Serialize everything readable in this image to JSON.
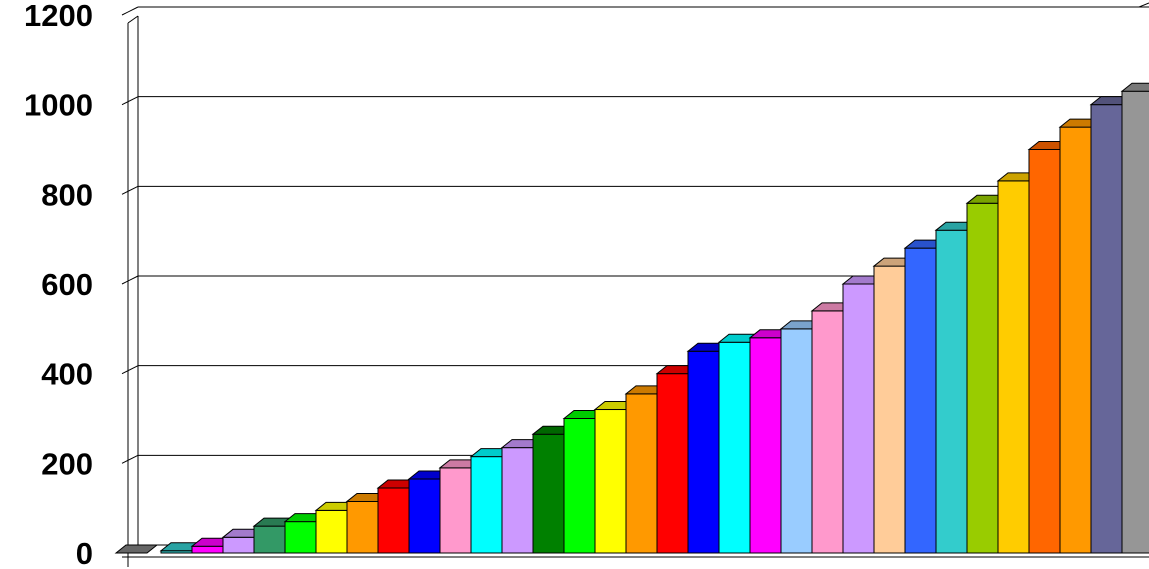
{
  "chart_data": {
    "type": "bar",
    "title": "",
    "xlabel": "",
    "ylabel": "",
    "ylim": [
      0,
      1200
    ],
    "yticks": [
      "0",
      "200",
      "400",
      "600",
      "800",
      "1000",
      "1200"
    ],
    "grid": true,
    "legend": "none",
    "style": "3d-columns",
    "values": [
      0,
      5,
      15,
      35,
      60,
      70,
      95,
      115,
      145,
      165,
      190,
      215,
      235,
      265,
      300,
      320,
      355,
      400,
      450,
      470,
      480,
      500,
      540,
      600,
      640,
      680,
      720,
      780,
      830,
      900,
      950,
      1000,
      1030
    ],
    "colors": [
      "#808080",
      "#33cccc",
      "#ff00ff",
      "#cc99ff",
      "#339966",
      "#00ff00",
      "#ffff00",
      "#ff9900",
      "#ff0000",
      "#0000ff",
      "#ff99cc",
      "#00ffff",
      "#cc99ff",
      "#008000",
      "#00ff00",
      "#ffff00",
      "#ff9900",
      "#ff0000",
      "#0000ff",
      "#00ffff",
      "#ff00ff",
      "#99ccff",
      "#ff99cc",
      "#cc99ff",
      "#ffcc99",
      "#3366ff",
      "#33cccc",
      "#99cc00",
      "#ffcc00",
      "#ff6600",
      "#ff9900",
      "#666699",
      "#969696"
    ]
  }
}
